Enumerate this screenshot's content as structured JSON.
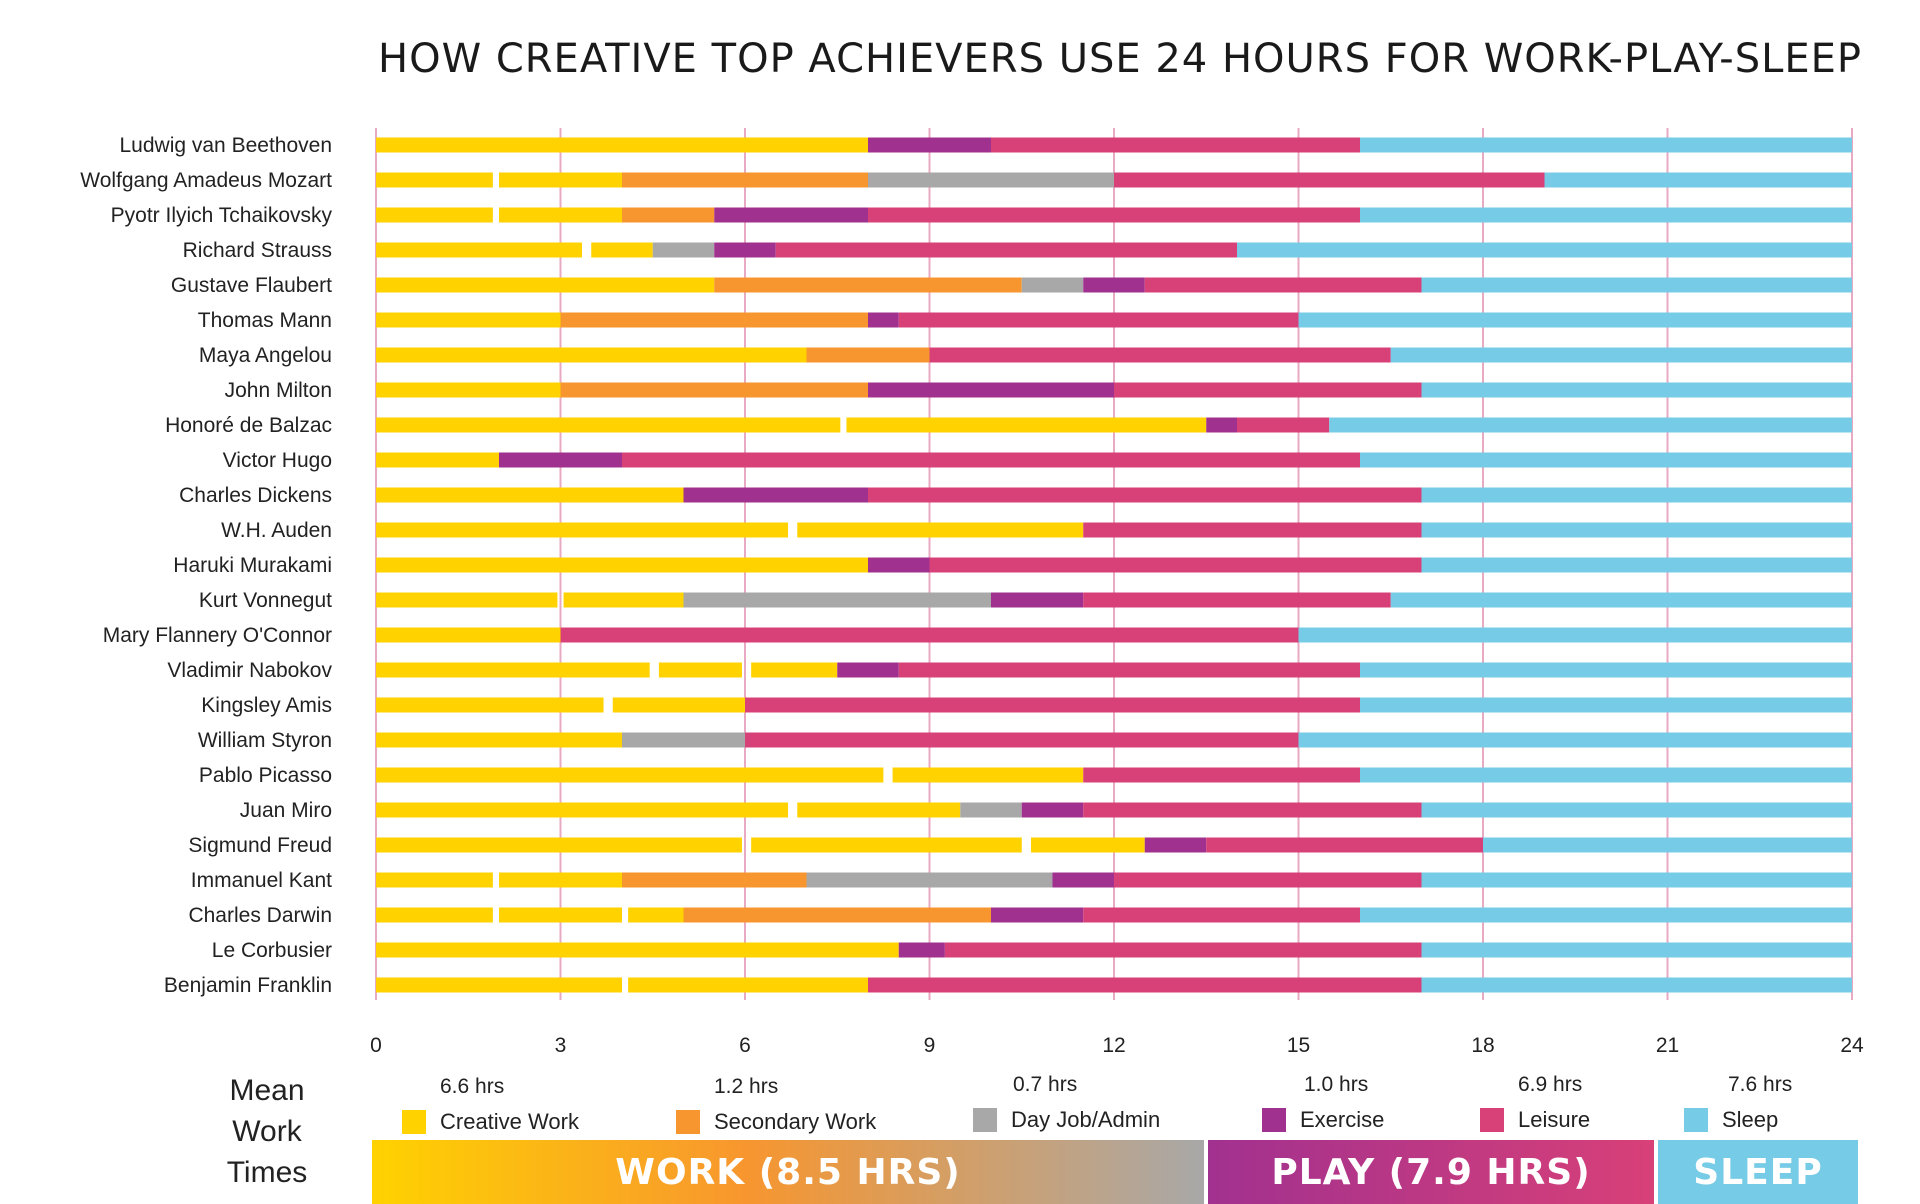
{
  "chart_data": {
    "type": "bar",
    "orientation": "horizontal-stacked",
    "title": "HOW CREATIVE TOP ACHIEVERS USE 24 HOURS FOR WORK-PLAY-SLEEP",
    "xlim": [
      0,
      24
    ],
    "xticks": [
      0,
      3,
      6,
      9,
      12,
      15,
      18,
      21,
      24
    ],
    "categories_colors": {
      "creative": "#FFD200",
      "secondary": "#F7962F",
      "dayjob": "#A8A8A8",
      "exercise": "#A1318F",
      "leisure": "#D84078",
      "sleep": "#76CBE6"
    },
    "rows": [
      {
        "name": "Ludwig van Beethoven",
        "segments": [
          [
            "creative",
            0,
            8
          ],
          [
            "exercise",
            8,
            10
          ],
          [
            "leisure",
            10,
            16
          ],
          [
            "sleep",
            16,
            24
          ]
        ]
      },
      {
        "name": "Wolfgang Amadeus Mozart",
        "segments": [
          [
            "creative",
            0,
            1.9
          ],
          [
            "creative",
            2,
            4
          ],
          [
            "secondary",
            4,
            8
          ],
          [
            "dayjob",
            8,
            12
          ],
          [
            "leisure",
            12,
            19
          ],
          [
            "sleep",
            19,
            24
          ]
        ]
      },
      {
        "name": "Pyotr Ilyich Tchaikovsky",
        "segments": [
          [
            "creative",
            0,
            1.9
          ],
          [
            "creative",
            2,
            4
          ],
          [
            "secondary",
            4,
            5.5
          ],
          [
            "exercise",
            5.5,
            8
          ],
          [
            "leisure",
            8,
            16
          ],
          [
            "sleep",
            16,
            24
          ]
        ]
      },
      {
        "name": "Richard Strauss",
        "segments": [
          [
            "creative",
            0,
            3.35
          ],
          [
            "creative",
            3.5,
            4.5
          ],
          [
            "dayjob",
            4.5,
            5.5
          ],
          [
            "exercise",
            5.5,
            6.5
          ],
          [
            "leisure",
            6.5,
            14
          ],
          [
            "sleep",
            14,
            24
          ]
        ]
      },
      {
        "name": "Gustave Flaubert",
        "segments": [
          [
            "creative",
            0,
            5.5
          ],
          [
            "secondary",
            5.5,
            10.5
          ],
          [
            "dayjob",
            10.5,
            11.5
          ],
          [
            "exercise",
            11.5,
            12.5
          ],
          [
            "leisure",
            12.5,
            17
          ],
          [
            "sleep",
            17,
            24
          ]
        ]
      },
      {
        "name": "Thomas Mann",
        "segments": [
          [
            "creative",
            0,
            3
          ],
          [
            "secondary",
            3,
            8
          ],
          [
            "exercise",
            8,
            8.5
          ],
          [
            "leisure",
            8.5,
            15
          ],
          [
            "sleep",
            15,
            24
          ]
        ]
      },
      {
        "name": "Maya Angelou",
        "segments": [
          [
            "creative",
            0,
            7
          ],
          [
            "secondary",
            7,
            9
          ],
          [
            "leisure",
            9,
            16.5
          ],
          [
            "sleep",
            16.5,
            24
          ]
        ]
      },
      {
        "name": "John Milton",
        "segments": [
          [
            "creative",
            0,
            3
          ],
          [
            "secondary",
            3,
            8
          ],
          [
            "exercise",
            8,
            12
          ],
          [
            "leisure",
            12,
            17
          ],
          [
            "sleep",
            17,
            24
          ]
        ]
      },
      {
        "name": "Honoré de Balzac",
        "segments": [
          [
            "creative",
            0,
            7.55
          ],
          [
            "creative",
            7.65,
            13.5
          ],
          [
            "exercise",
            13.5,
            14
          ],
          [
            "leisure",
            14,
            15.5
          ],
          [
            "sleep",
            15.5,
            24
          ]
        ]
      },
      {
        "name": "Victor Hugo",
        "segments": [
          [
            "creative",
            0,
            2
          ],
          [
            "exercise",
            2,
            4
          ],
          [
            "leisure",
            4,
            16
          ],
          [
            "sleep",
            16,
            24
          ]
        ]
      },
      {
        "name": "Charles Dickens",
        "segments": [
          [
            "creative",
            0,
            5
          ],
          [
            "exercise",
            5,
            8
          ],
          [
            "leisure",
            8,
            17
          ],
          [
            "sleep",
            17,
            24
          ]
        ]
      },
      {
        "name": "W.H. Auden",
        "segments": [
          [
            "creative",
            0,
            6.7
          ],
          [
            "creative",
            6.85,
            11.5
          ],
          [
            "leisure",
            11.5,
            17
          ],
          [
            "sleep",
            17,
            24
          ]
        ]
      },
      {
        "name": "Haruki Murakami",
        "segments": [
          [
            "creative",
            0,
            8
          ],
          [
            "exercise",
            8,
            9
          ],
          [
            "leisure",
            9,
            17
          ],
          [
            "sleep",
            17,
            24
          ]
        ]
      },
      {
        "name": "Kurt Vonnegut",
        "segments": [
          [
            "creative",
            0,
            2.95
          ],
          [
            "creative",
            3.05,
            5
          ],
          [
            "dayjob",
            5,
            10
          ],
          [
            "exercise",
            10,
            11.5
          ],
          [
            "leisure",
            11.5,
            16.5
          ],
          [
            "sleep",
            16.5,
            24
          ]
        ]
      },
      {
        "name": "Mary Flannery O'Connor",
        "segments": [
          [
            "creative",
            0,
            3
          ],
          [
            "leisure",
            3,
            15
          ],
          [
            "sleep",
            15,
            24
          ]
        ]
      },
      {
        "name": "Vladimir Nabokov",
        "segments": [
          [
            "creative",
            0,
            4.45
          ],
          [
            "creative",
            4.6,
            5.95
          ],
          [
            "creative",
            6.1,
            7.5
          ],
          [
            "exercise",
            7.5,
            8.5
          ],
          [
            "leisure",
            8.5,
            16
          ],
          [
            "sleep",
            16,
            24
          ]
        ]
      },
      {
        "name": "Kingsley Amis",
        "segments": [
          [
            "creative",
            0,
            3.7
          ],
          [
            "creative",
            3.85,
            6
          ],
          [
            "leisure",
            6,
            16
          ],
          [
            "sleep",
            16,
            24
          ]
        ]
      },
      {
        "name": "William Styron",
        "segments": [
          [
            "creative",
            0,
            4
          ],
          [
            "dayjob",
            4,
            6
          ],
          [
            "leisure",
            6,
            15
          ],
          [
            "sleep",
            15,
            24
          ]
        ]
      },
      {
        "name": "Pablo Picasso",
        "segments": [
          [
            "creative",
            0,
            8.25
          ],
          [
            "creative",
            8.4,
            11.5
          ],
          [
            "leisure",
            11.5,
            16
          ],
          [
            "sleep",
            16,
            24
          ]
        ]
      },
      {
        "name": "Juan Miro",
        "segments": [
          [
            "creative",
            0,
            6.7
          ],
          [
            "creative",
            6.85,
            9.5
          ],
          [
            "dayjob",
            9.5,
            10.5
          ],
          [
            "exercise",
            10.5,
            11.5
          ],
          [
            "leisure",
            11.5,
            17
          ],
          [
            "sleep",
            17,
            24
          ]
        ]
      },
      {
        "name": "Sigmund Freud",
        "segments": [
          [
            "creative",
            0,
            5.95
          ],
          [
            "creative",
            6.1,
            10.5
          ],
          [
            "creative",
            10.65,
            12.5
          ],
          [
            "exercise",
            12.5,
            13.5
          ],
          [
            "leisure",
            13.5,
            18
          ],
          [
            "sleep",
            18,
            24
          ]
        ]
      },
      {
        "name": "Immanuel Kant",
        "segments": [
          [
            "creative",
            0,
            1.9
          ],
          [
            "creative",
            2,
            4
          ],
          [
            "secondary",
            4,
            7
          ],
          [
            "dayjob",
            7,
            11
          ],
          [
            "exercise",
            11,
            12
          ],
          [
            "leisure",
            12,
            17
          ],
          [
            "sleep",
            17,
            24
          ]
        ]
      },
      {
        "name": "Charles Darwin",
        "segments": [
          [
            "creative",
            0,
            1.9
          ],
          [
            "creative",
            2,
            4
          ],
          [
            "creative",
            4.1,
            5
          ],
          [
            "secondary",
            5,
            10
          ],
          [
            "exercise",
            10,
            11.5
          ],
          [
            "leisure",
            11.5,
            16
          ],
          [
            "sleep",
            16,
            24
          ]
        ]
      },
      {
        "name": "Le Corbusier",
        "segments": [
          [
            "creative",
            0,
            8.5
          ],
          [
            "exercise",
            8.5,
            9.25
          ],
          [
            "leisure",
            9.25,
            17
          ],
          [
            "sleep",
            17,
            24
          ]
        ]
      },
      {
        "name": "Benjamin Franklin",
        "segments": [
          [
            "creative",
            0,
            4
          ],
          [
            "creative",
            4.1,
            8
          ],
          [
            "leisure",
            8,
            17
          ],
          [
            "sleep",
            17,
            24
          ]
        ]
      }
    ]
  },
  "mean_title_lines": [
    "Mean",
    "Work",
    "Times"
  ],
  "legend": [
    {
      "key": "creative",
      "hrs": "6.6 hrs",
      "label": "Creative Work",
      "color": "#FFD200"
    },
    {
      "key": "secondary",
      "hrs": "1.2 hrs",
      "label": "Secondary Work",
      "color": "#F7962F"
    },
    {
      "key": "dayjob",
      "hrs": "0.7 hrs",
      "label": "Day Job/Admin",
      "color": "#A8A8A8"
    },
    {
      "key": "exercise",
      "hrs": "1.0 hrs",
      "label": "Exercise",
      "color": "#A1318F"
    },
    {
      "key": "leisure",
      "hrs": "6.9 hrs",
      "label": "Leisure",
      "color": "#D84078"
    },
    {
      "key": "sleep",
      "hrs": "7.6 hrs",
      "label": "Sleep",
      "color": "#76CBE6"
    }
  ],
  "bands": [
    {
      "label": "WORK (8.5 HRS)",
      "gradient": [
        "#FFD200",
        "#F7962F",
        "#A8A8A8"
      ]
    },
    {
      "label": "PLAY (7.9 HRS)",
      "gradient": [
        "#A1318F",
        "#D84078"
      ]
    },
    {
      "label": "SLEEP",
      "gradient": [
        "#76CBE6",
        "#76CBE6"
      ]
    }
  ]
}
